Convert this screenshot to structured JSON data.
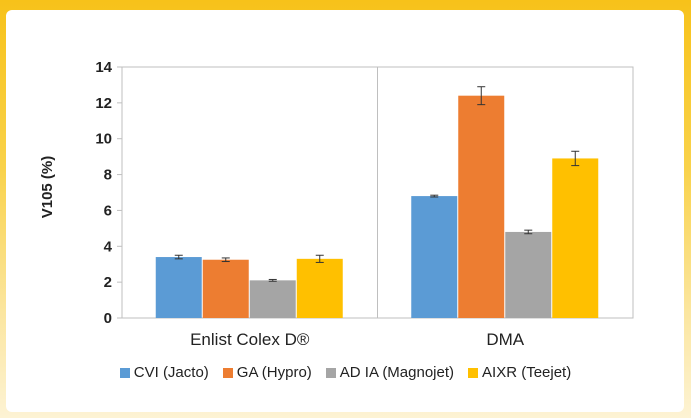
{
  "chart_data": {
    "type": "bar",
    "categories": [
      "Enlist Colex D®",
      "DMA"
    ],
    "series": [
      {
        "name": "CVI (Jacto)",
        "values": [
          3.4,
          6.8
        ],
        "errors": [
          0.1,
          0.05
        ],
        "color": "#5b9bd5"
      },
      {
        "name": "GA (Hypro)",
        "values": [
          3.25,
          12.4
        ],
        "errors": [
          0.1,
          0.5
        ],
        "color": "#ed7d31"
      },
      {
        "name": "AD IA (Magnojet)",
        "values": [
          2.1,
          4.8
        ],
        "errors": [
          0.05,
          0.1
        ],
        "color": "#a5a5a5"
      },
      {
        "name": "AIXR (Teejet)",
        "values": [
          3.3,
          8.9
        ],
        "errors": [
          0.2,
          0.4
        ],
        "color": "#ffc000"
      }
    ],
    "ylabel": "V105 (%)",
    "xlabel": "",
    "title": "",
    "ylim": [
      0,
      14
    ],
    "yticks": [
      0,
      2,
      4,
      6,
      8,
      10,
      12,
      14
    ],
    "grid": false,
    "legend_position": "bottom"
  }
}
